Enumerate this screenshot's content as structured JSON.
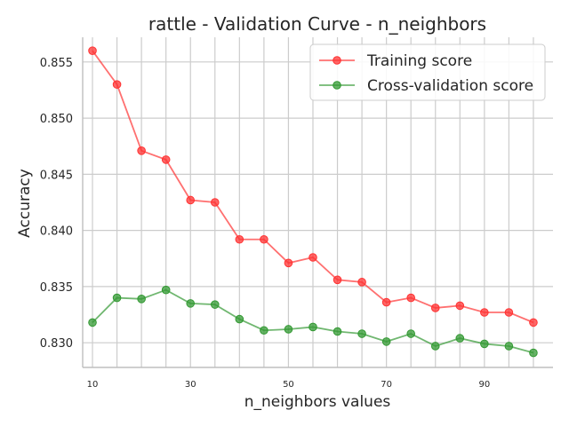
{
  "chart_data": {
    "type": "line",
    "title": "rattle - Validation Curve - n_neighbors",
    "xlabel": "n_neighbors values",
    "ylabel": "Accuracy",
    "x": [
      10,
      15,
      20,
      25,
      30,
      35,
      40,
      45,
      50,
      55,
      60,
      65,
      70,
      75,
      80,
      85,
      90,
      95,
      100
    ],
    "xticks": [
      10,
      30,
      50,
      70,
      90
    ],
    "yticks": [
      0.83,
      0.835,
      0.84,
      0.845,
      0.85,
      0.855
    ],
    "ytick_labels": [
      "0.830",
      "0.835",
      "0.840",
      "0.845",
      "0.850",
      "0.855"
    ],
    "xlim": [
      8,
      104
    ],
    "ylim": [
      0.8278,
      0.8572
    ],
    "grid": true,
    "legend": "top-right",
    "series": [
      {
        "name": "Training score",
        "color": "#ff3333",
        "values": [
          0.856,
          0.853,
          0.8471,
          0.8463,
          0.8427,
          0.8425,
          0.8392,
          0.8392,
          0.8371,
          0.8376,
          0.8356,
          0.8354,
          0.8336,
          0.834,
          0.8331,
          0.8333,
          0.8327,
          0.8327,
          0.8318
        ]
      },
      {
        "name": "Cross-validation score",
        "color": "#339933",
        "values": [
          0.8318,
          0.834,
          0.8339,
          0.8347,
          0.8335,
          0.8334,
          0.8321,
          0.8311,
          0.8312,
          0.8314,
          0.831,
          0.8308,
          0.8301,
          0.8308,
          0.8297,
          0.8304,
          0.8299,
          0.8297,
          0.8291
        ]
      }
    ]
  }
}
